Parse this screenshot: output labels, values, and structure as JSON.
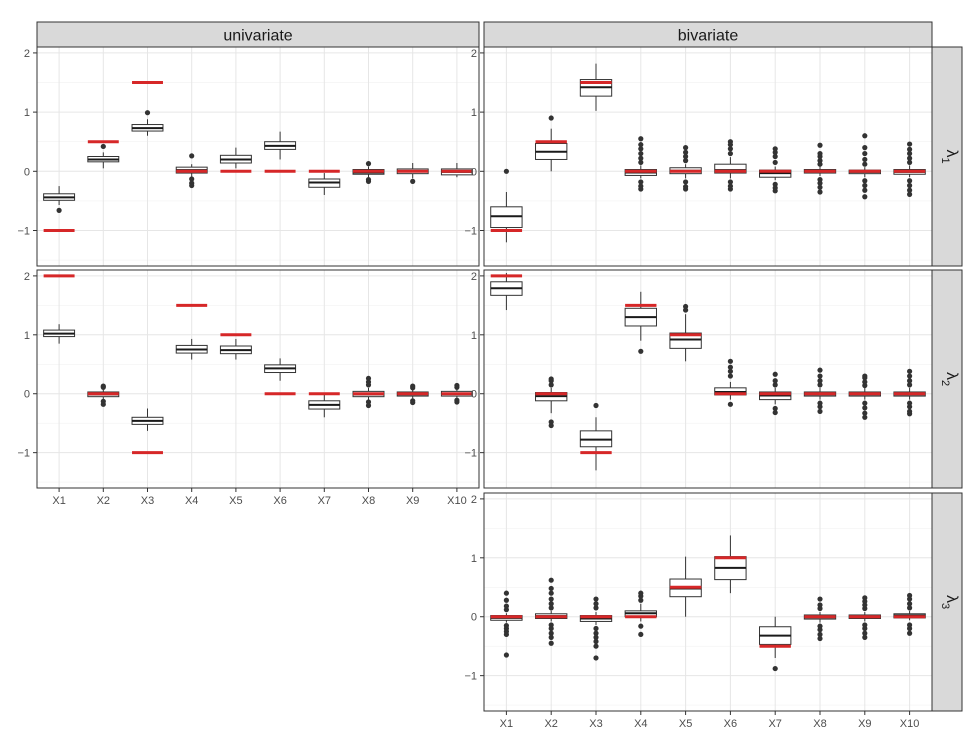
{
  "chart_data": {
    "type": "boxplot",
    "columns": [
      "univariate",
      "bivariate"
    ],
    "rows": [
      {
        "label": "λ",
        "sub": "1"
      },
      {
        "label": "λ",
        "sub": "2"
      },
      {
        "label": "λ",
        "sub": "3"
      }
    ],
    "categories": [
      "X1",
      "X2",
      "X3",
      "X4",
      "X5",
      "X6",
      "X7",
      "X8",
      "X9",
      "X10"
    ],
    "ylim": [
      -1.6,
      2.1
    ],
    "yticks": [
      -1,
      0,
      1,
      2
    ],
    "ytick_labels": [
      "−1",
      "0",
      "1",
      "2"
    ],
    "panels": [
      {
        "column": "univariate",
        "row": 0,
        "boxes": [
          {
            "category": "X1",
            "q1": -0.49,
            "median": -0.44,
            "q3": -0.38,
            "lower": -0.57,
            "upper": -0.25,
            "outliers": [
              -0.66
            ],
            "truth": -1.0
          },
          {
            "category": "X2",
            "q1": 0.16,
            "median": 0.2,
            "q3": 0.25,
            "lower": 0.05,
            "upper": 0.32,
            "outliers": [
              0.42
            ],
            "truth": 0.5
          },
          {
            "category": "X3",
            "q1": 0.68,
            "median": 0.73,
            "q3": 0.79,
            "lower": 0.6,
            "upper": 0.88,
            "outliers": [
              0.99
            ],
            "truth": 1.5
          },
          {
            "category": "X4",
            "q1": -0.03,
            "median": 0.02,
            "q3": 0.07,
            "lower": -0.1,
            "upper": 0.12,
            "outliers": [
              -0.13,
              -0.2,
              -0.24,
              0.26
            ],
            "truth": 0.0
          },
          {
            "category": "X5",
            "q1": 0.14,
            "median": 0.2,
            "q3": 0.27,
            "lower": 0.05,
            "upper": 0.4,
            "outliers": [],
            "truth": 0.0
          },
          {
            "category": "X6",
            "q1": 0.37,
            "median": 0.43,
            "q3": 0.5,
            "lower": 0.2,
            "upper": 0.67,
            "outliers": [],
            "truth": 0.0
          },
          {
            "category": "X7",
            "q1": -0.27,
            "median": -0.19,
            "q3": -0.13,
            "lower": -0.4,
            "upper": -0.03,
            "outliers": [],
            "truth": 0.0
          },
          {
            "category": "X8",
            "q1": -0.05,
            "median": -0.02,
            "q3": 0.03,
            "lower": -0.1,
            "upper": 0.08,
            "outliers": [
              -0.14,
              -0.17,
              0.13
            ],
            "truth": 0.0
          },
          {
            "category": "X9",
            "q1": -0.04,
            "median": 0.0,
            "q3": 0.04,
            "lower": -0.12,
            "upper": 0.14,
            "outliers": [
              -0.17
            ],
            "truth": 0.0
          },
          {
            "category": "X10",
            "q1": -0.06,
            "median": -0.01,
            "q3": 0.04,
            "lower": -0.1,
            "upper": 0.14,
            "outliers": [],
            "truth": 0.0
          }
        ]
      },
      {
        "column": "univariate",
        "row": 1,
        "boxes": [
          {
            "category": "X1",
            "q1": 0.97,
            "median": 1.02,
            "q3": 1.08,
            "lower": 0.85,
            "upper": 1.18,
            "outliers": [],
            "truth": 2.0
          },
          {
            "category": "X2",
            "q1": -0.05,
            "median": -0.01,
            "q3": 0.03,
            "lower": -0.09,
            "upper": 0.07,
            "outliers": [
              -0.13,
              -0.18,
              0.11,
              0.13
            ],
            "truth": 0.0
          },
          {
            "category": "X3",
            "q1": -0.52,
            "median": -0.46,
            "q3": -0.4,
            "lower": -0.63,
            "upper": -0.25,
            "outliers": [],
            "truth": -1.0
          },
          {
            "category": "X4",
            "q1": 0.69,
            "median": 0.75,
            "q3": 0.82,
            "lower": 0.58,
            "upper": 0.93,
            "outliers": [],
            "truth": 1.5
          },
          {
            "category": "X5",
            "q1": 0.68,
            "median": 0.74,
            "q3": 0.81,
            "lower": 0.58,
            "upper": 0.93,
            "outliers": [],
            "truth": 1.0
          },
          {
            "category": "X6",
            "q1": 0.36,
            "median": 0.43,
            "q3": 0.49,
            "lower": 0.22,
            "upper": 0.6,
            "outliers": [],
            "truth": 0.0
          },
          {
            "category": "X7",
            "q1": -0.26,
            "median": -0.19,
            "q3": -0.12,
            "lower": -0.4,
            "upper": -0.02,
            "outliers": [],
            "truth": 0.0
          },
          {
            "category": "X8",
            "q1": -0.05,
            "median": -0.01,
            "q3": 0.04,
            "lower": -0.1,
            "upper": 0.1,
            "outliers": [
              -0.14,
              -0.2,
              0.15,
              0.2,
              0.26
            ],
            "truth": 0.0
          },
          {
            "category": "X9",
            "q1": -0.04,
            "median": -0.01,
            "q3": 0.03,
            "lower": -0.08,
            "upper": 0.07,
            "outliers": [
              -0.12,
              -0.15,
              0.1,
              0.13
            ],
            "truth": 0.0
          },
          {
            "category": "X10",
            "q1": -0.04,
            "median": 0.0,
            "q3": 0.04,
            "lower": -0.07,
            "upper": 0.08,
            "outliers": [
              -0.11,
              -0.14,
              0.11,
              0.14
            ],
            "truth": 0.0
          }
        ]
      },
      {
        "column": "bivariate",
        "row": 0,
        "boxes": [
          {
            "category": "X1",
            "q1": -0.95,
            "median": -0.76,
            "q3": -0.6,
            "lower": -1.2,
            "upper": -0.35,
            "outliers": [
              0.0
            ],
            "truth": -1.0
          },
          {
            "category": "X2",
            "q1": 0.2,
            "median": 0.33,
            "q3": 0.47,
            "lower": 0.0,
            "upper": 0.72,
            "outliers": [
              0.9
            ],
            "truth": 0.5
          },
          {
            "category": "X3",
            "q1": 1.27,
            "median": 1.42,
            "q3": 1.55,
            "lower": 1.02,
            "upper": 1.82,
            "outliers": [],
            "truth": 1.5
          },
          {
            "category": "X4",
            "q1": -0.07,
            "median": -0.02,
            "q3": 0.03,
            "lower": -0.12,
            "upper": 0.1,
            "outliers": [
              -0.18,
              -0.25,
              -0.3,
              0.15,
              0.22,
              0.3,
              0.38,
              0.45,
              0.55
            ],
            "truth": 0.0
          },
          {
            "category": "X5",
            "q1": -0.04,
            "median": 0.01,
            "q3": 0.06,
            "lower": -0.12,
            "upper": 0.12,
            "outliers": [
              -0.18,
              -0.26,
              -0.3,
              0.18,
              0.25,
              0.32,
              0.4
            ],
            "truth": 0.0
          },
          {
            "category": "X6",
            "q1": -0.03,
            "median": 0.02,
            "q3": 0.12,
            "lower": -0.12,
            "upper": 0.24,
            "outliers": [
              -0.18,
              -0.25,
              -0.3,
              0.3,
              0.38,
              0.45,
              0.5
            ],
            "truth": 0.0
          },
          {
            "category": "X7",
            "q1": -0.1,
            "median": -0.03,
            "q3": 0.02,
            "lower": -0.15,
            "upper": 0.08,
            "outliers": [
              -0.22,
              -0.28,
              -0.33,
              0.15,
              0.25,
              0.32,
              0.38
            ],
            "truth": 0.0
          },
          {
            "category": "X8",
            "q1": -0.03,
            "median": 0.0,
            "q3": 0.03,
            "lower": -0.08,
            "upper": 0.08,
            "outliers": [
              -0.14,
              -0.2,
              -0.27,
              -0.35,
              0.12,
              0.18,
              0.25,
              0.3,
              0.44
            ],
            "truth": 0.0
          },
          {
            "category": "X9",
            "q1": -0.04,
            "median": -0.01,
            "q3": 0.02,
            "lower": -0.1,
            "upper": 0.07,
            "outliers": [
              -0.16,
              -0.24,
              -0.32,
              -0.43,
              0.12,
              0.2,
              0.3,
              0.4,
              0.6
            ],
            "truth": 0.0
          },
          {
            "category": "X10",
            "q1": -0.05,
            "median": -0.01,
            "q3": 0.03,
            "lower": -0.1,
            "upper": 0.1,
            "outliers": [
              -0.16,
              -0.24,
              -0.32,
              -0.39,
              0.15,
              0.22,
              0.3,
              0.37,
              0.46
            ],
            "truth": 0.0
          }
        ]
      },
      {
        "column": "bivariate",
        "row": 1,
        "boxes": [
          {
            "category": "X1",
            "q1": 1.67,
            "median": 1.79,
            "q3": 1.9,
            "lower": 1.42,
            "upper": 2.05,
            "outliers": [],
            "truth": 2.0
          },
          {
            "category": "X2",
            "q1": -0.12,
            "median": -0.04,
            "q3": 0.02,
            "lower": -0.33,
            "upper": 0.1,
            "outliers": [
              -0.48,
              -0.54,
              0.15,
              0.22,
              0.25
            ],
            "truth": 0.0
          },
          {
            "category": "X3",
            "q1": -0.9,
            "median": -0.78,
            "q3": -0.63,
            "lower": -1.3,
            "upper": -0.4,
            "outliers": [
              -0.2
            ],
            "truth": -1.0
          },
          {
            "category": "X4",
            "q1": 1.15,
            "median": 1.3,
            "q3": 1.45,
            "lower": 0.9,
            "upper": 1.73,
            "outliers": [
              0.72
            ],
            "truth": 1.5
          },
          {
            "category": "X5",
            "q1": 0.77,
            "median": 0.92,
            "q3": 1.03,
            "lower": 0.55,
            "upper": 1.35,
            "outliers": [
              1.42,
              1.48
            ],
            "truth": 1.0
          },
          {
            "category": "X6",
            "q1": -0.02,
            "median": 0.03,
            "q3": 0.1,
            "lower": -0.1,
            "upper": 0.2,
            "outliers": [
              -0.18,
              0.3,
              0.38,
              0.45,
              0.55
            ],
            "truth": 0.0
          },
          {
            "category": "X7",
            "q1": -0.1,
            "median": -0.03,
            "q3": 0.03,
            "lower": -0.18,
            "upper": 0.1,
            "outliers": [
              -0.25,
              -0.32,
              0.15,
              0.22,
              0.33
            ],
            "truth": 0.0
          },
          {
            "category": "X8",
            "q1": -0.04,
            "median": -0.01,
            "q3": 0.03,
            "lower": -0.1,
            "upper": 0.1,
            "outliers": [
              -0.16,
              -0.22,
              -0.3,
              0.15,
              0.22,
              0.3,
              0.4
            ],
            "truth": 0.0
          },
          {
            "category": "X9",
            "q1": -0.04,
            "median": -0.01,
            "q3": 0.03,
            "lower": -0.1,
            "upper": 0.1,
            "outliers": [
              -0.16,
              -0.24,
              -0.33,
              -0.4,
              0.14,
              0.2,
              0.27,
              0.3
            ],
            "truth": 0.0
          },
          {
            "category": "X10",
            "q1": -0.04,
            "median": -0.01,
            "q3": 0.03,
            "lower": -0.1,
            "upper": 0.1,
            "outliers": [
              -0.16,
              -0.22,
              -0.3,
              -0.34,
              0.15,
              0.22,
              0.3,
              0.38
            ],
            "truth": 0.0
          }
        ]
      },
      {
        "column": "bivariate",
        "row": 2,
        "boxes": [
          {
            "category": "X1",
            "q1": -0.06,
            "median": -0.02,
            "q3": 0.02,
            "lower": -0.1,
            "upper": 0.06,
            "outliers": [
              -0.15,
              -0.2,
              -0.25,
              -0.3,
              -0.65,
              0.12,
              0.18,
              0.28,
              0.4
            ],
            "truth": 0.0
          },
          {
            "category": "X2",
            "q1": -0.03,
            "median": 0.01,
            "q3": 0.05,
            "lower": -0.08,
            "upper": 0.1,
            "outliers": [
              -0.14,
              -0.2,
              -0.28,
              -0.35,
              -0.45,
              0.15,
              0.22,
              0.3,
              0.4,
              0.48,
              0.62
            ],
            "truth": 0.0
          },
          {
            "category": "X3",
            "q1": -0.08,
            "median": -0.03,
            "q3": 0.02,
            "lower": -0.14,
            "upper": 0.08,
            "outliers": [
              -0.2,
              -0.28,
              -0.35,
              -0.42,
              -0.5,
              -0.7,
              0.15,
              0.22,
              0.3
            ],
            "truth": 0.0
          },
          {
            "category": "X4",
            "q1": 0.0,
            "median": 0.06,
            "q3": 0.1,
            "lower": -0.08,
            "upper": 0.22,
            "outliers": [
              -0.16,
              -0.3,
              0.28,
              0.35,
              0.4
            ],
            "truth": 0.0
          },
          {
            "category": "X5",
            "q1": 0.34,
            "median": 0.48,
            "q3": 0.64,
            "lower": 0.0,
            "upper": 1.02,
            "outliers": [],
            "truth": 0.5
          },
          {
            "category": "X6",
            "q1": 0.63,
            "median": 0.83,
            "q3": 1.02,
            "lower": 0.4,
            "upper": 1.38,
            "outliers": [],
            "truth": 1.0
          },
          {
            "category": "X7",
            "q1": -0.47,
            "median": -0.32,
            "q3": -0.17,
            "lower": -0.7,
            "upper": 0.0,
            "outliers": [
              -0.88
            ],
            "truth": -0.5
          },
          {
            "category": "X8",
            "q1": -0.04,
            "median": -0.01,
            "q3": 0.03,
            "lower": -0.1,
            "upper": 0.08,
            "outliers": [
              -0.16,
              -0.22,
              -0.3,
              -0.37,
              0.14,
              0.2,
              0.3
            ],
            "truth": 0.0
          },
          {
            "category": "X9",
            "q1": -0.03,
            "median": 0.0,
            "q3": 0.03,
            "lower": -0.08,
            "upper": 0.08,
            "outliers": [
              -0.14,
              -0.2,
              -0.28,
              -0.35,
              0.14,
              0.2,
              0.26,
              0.32
            ],
            "truth": 0.0
          },
          {
            "category": "X10",
            "q1": -0.02,
            "median": 0.02,
            "q3": 0.05,
            "lower": -0.06,
            "upper": 0.1,
            "outliers": [
              -0.14,
              -0.2,
              -0.28,
              0.15,
              0.22,
              0.3,
              0.36
            ],
            "truth": 0.0
          }
        ]
      }
    ]
  }
}
